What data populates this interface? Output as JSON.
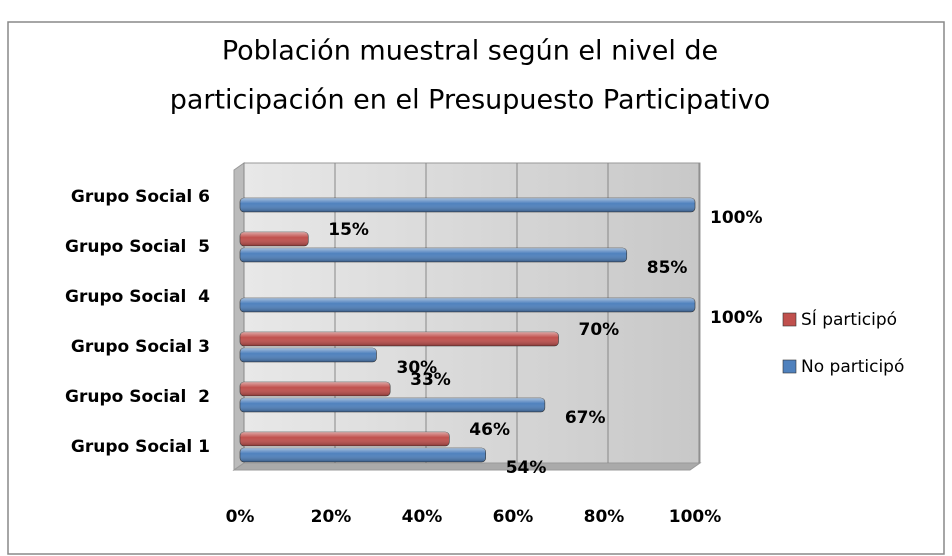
{
  "chart_data": {
    "type": "hbar",
    "title": [
      "Población muestral según el nivel de",
      "participación en el Presupuesto Participativo"
    ],
    "categories": [
      "Grupo Social 1",
      "Grupo Social  2",
      "Grupo Social 3",
      "Grupo Social  4",
      "Grupo Social  5",
      "Grupo Social 6"
    ],
    "series": [
      {
        "name": "SÍ participó",
        "color": "#c0504d",
        "values": [
          46,
          33,
          70,
          0,
          15,
          0
        ],
        "value_labels": [
          "46%",
          "33%",
          "70%",
          null,
          "15%",
          null
        ]
      },
      {
        "name": "No participó",
        "color": "#4f81bd",
        "values": [
          54,
          67,
          30,
          100,
          85,
          100
        ],
        "value_labels": [
          "54%",
          "67%",
          "30%",
          "100%",
          "85%",
          "100%"
        ]
      }
    ],
    "xlim": [
      0,
      100
    ],
    "xticks": [
      {
        "value": 0,
        "label": "0%"
      },
      {
        "value": 20,
        "label": "20%"
      },
      {
        "value": 40,
        "label": "40%"
      },
      {
        "value": 60,
        "label": "60%"
      },
      {
        "value": 80,
        "label": "80%"
      },
      {
        "value": 100,
        "label": "100%"
      }
    ],
    "grid": true,
    "legend": "right"
  }
}
